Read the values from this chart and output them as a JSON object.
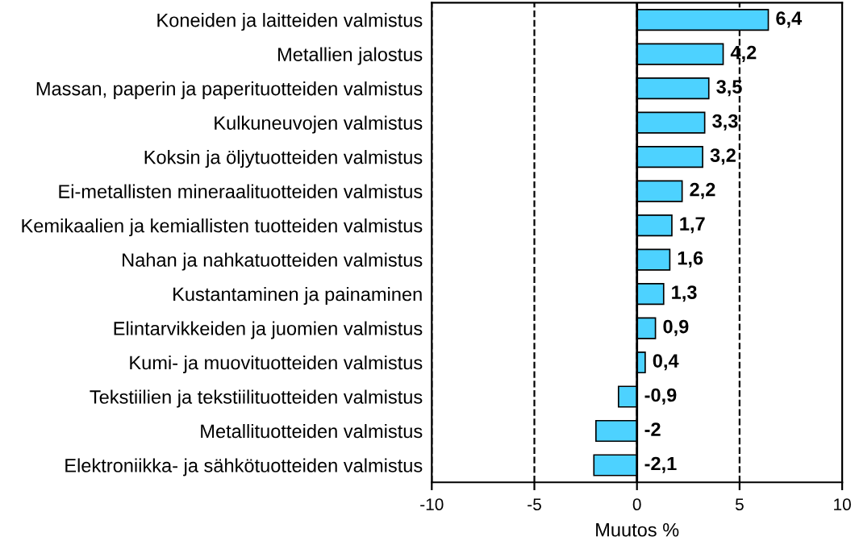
{
  "chart_data": {
    "type": "bar",
    "orientation": "horizontal",
    "categories": [
      "Koneiden ja laitteiden valmistus",
      "Metallien jalostus",
      "Massan, paperin ja paperituotteiden valmistus",
      "Kulkuneuvojen valmistus",
      "Koksin ja öljytuotteiden valmistus",
      "Ei-metallisten mineraalituotteiden valmistus",
      "Kemikaalien ja kemiallisten tuotteiden valmistus",
      "Nahan ja nahkatuotteiden valmistus",
      "Kustantaminen ja painaminen",
      "Elintarvikkeiden ja juomien valmistus",
      "Kumi- ja muovituotteiden valmistus",
      "Tekstiilien ja tekstiilituotteiden valmistus",
      "Metallituotteiden valmistus",
      "Elektroniikka- ja sähkötuotteiden valmistus"
    ],
    "values": [
      6.4,
      4.2,
      3.5,
      3.3,
      3.2,
      2.2,
      1.7,
      1.6,
      1.3,
      0.9,
      0.4,
      -0.9,
      -2,
      -2.1
    ],
    "value_labels": [
      "6,4",
      "4,2",
      "3,5",
      "3,3",
      "3,2",
      "2,2",
      "1,7",
      "1,6",
      "1,3",
      "0,9",
      "0,4",
      "-0,9",
      "-2",
      "-2,1"
    ],
    "color": "#4dd2ff",
    "xlabel": "Muutos %",
    "xlim": [
      -10,
      10
    ],
    "xticks": [
      -10,
      -5,
      0,
      5,
      10
    ],
    "grid": "x",
    "ref_lines": [
      {
        "axis": "x",
        "value": 0,
        "label": null,
        "color": "#000000",
        "line_style": "solid"
      }
    ]
  }
}
